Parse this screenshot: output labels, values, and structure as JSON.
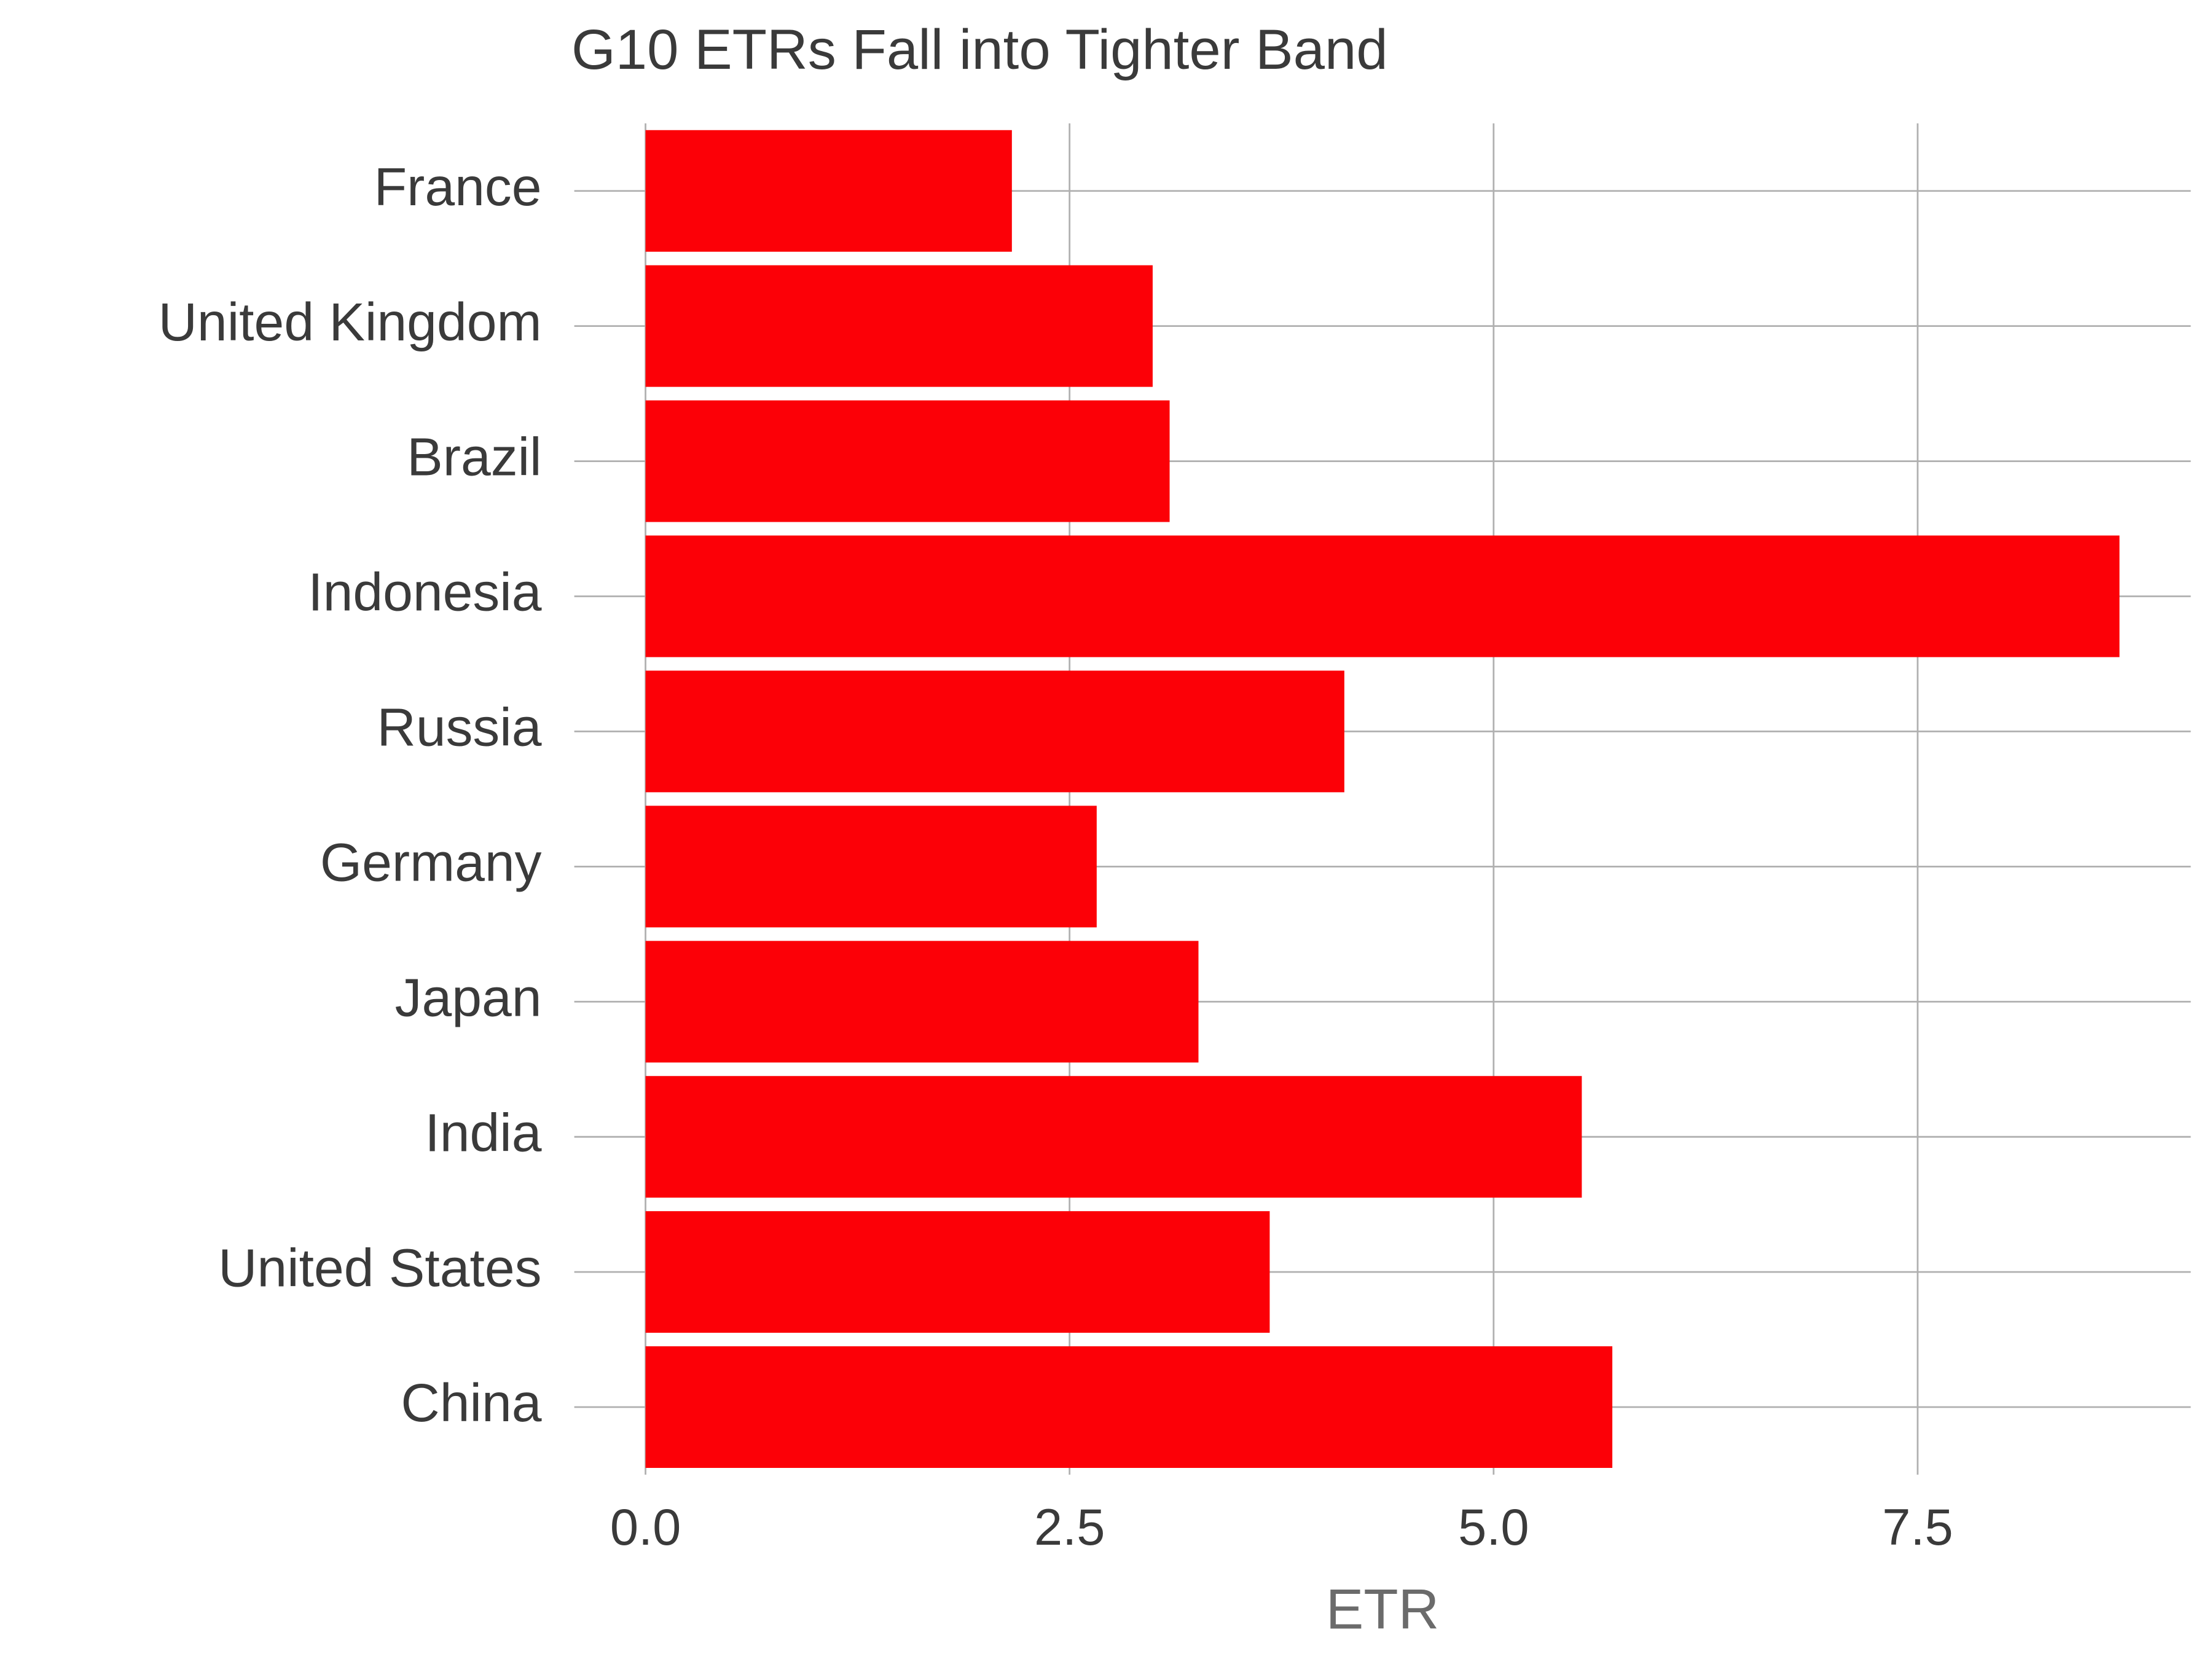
{
  "chart_data": {
    "type": "bar",
    "orientation": "horizontal",
    "title": "G10 ETRs Fall into Tighter Band",
    "x_label": "ETR",
    "categories": [
      "France",
      "United Kingdom",
      "Brazil",
      "Indonesia",
      "Russia",
      "Germany",
      "Japan",
      "India",
      "United States",
      "China"
    ],
    "values": [
      2.16,
      2.99,
      3.09,
      8.69,
      4.12,
      2.66,
      3.26,
      5.52,
      3.68,
      5.7
    ],
    "color": "#fc0007",
    "xlim": [
      -0.42,
      9.11
    ],
    "xticks": [
      {
        "value": 0,
        "label": "0.0"
      },
      2.5,
      {
        "value": 5,
        "label": "5.0"
      },
      7.5
    ],
    "grid": true
  }
}
